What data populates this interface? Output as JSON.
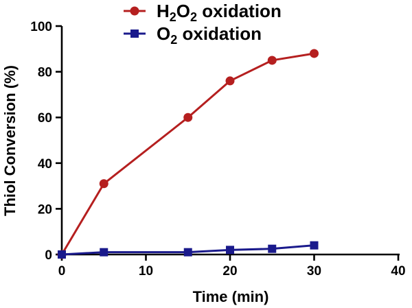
{
  "chart_data": {
    "type": "line",
    "xlabel": "Time (min)",
    "ylabel": "Thiol Conversion (%)",
    "xlim": [
      0,
      40
    ],
    "ylim": [
      0,
      100
    ],
    "xticks": [
      0,
      10,
      20,
      30,
      40
    ],
    "yticks": [
      0,
      20,
      40,
      60,
      80,
      100
    ],
    "grid": false,
    "legend_position": "top",
    "series": [
      {
        "name": "H2O2 oxidation",
        "legend_parts": {
          "a": "H",
          "sub1": "2",
          "b": "O",
          "sub2": "2",
          "c": " oxidation"
        },
        "color": "#b51f1f",
        "marker": "circle",
        "x": [
          0,
          5,
          15,
          20,
          25,
          30
        ],
        "y": [
          0,
          31,
          60,
          76,
          85,
          88
        ]
      },
      {
        "name": "O2 oxidation",
        "legend_parts": {
          "a": "O",
          "sub1": "2",
          "c": " oxidation"
        },
        "color": "#1a1a8c",
        "marker": "square",
        "x": [
          0,
          5,
          15,
          20,
          25,
          30
        ],
        "y": [
          0,
          1,
          1,
          2,
          2.5,
          4
        ]
      }
    ]
  }
}
